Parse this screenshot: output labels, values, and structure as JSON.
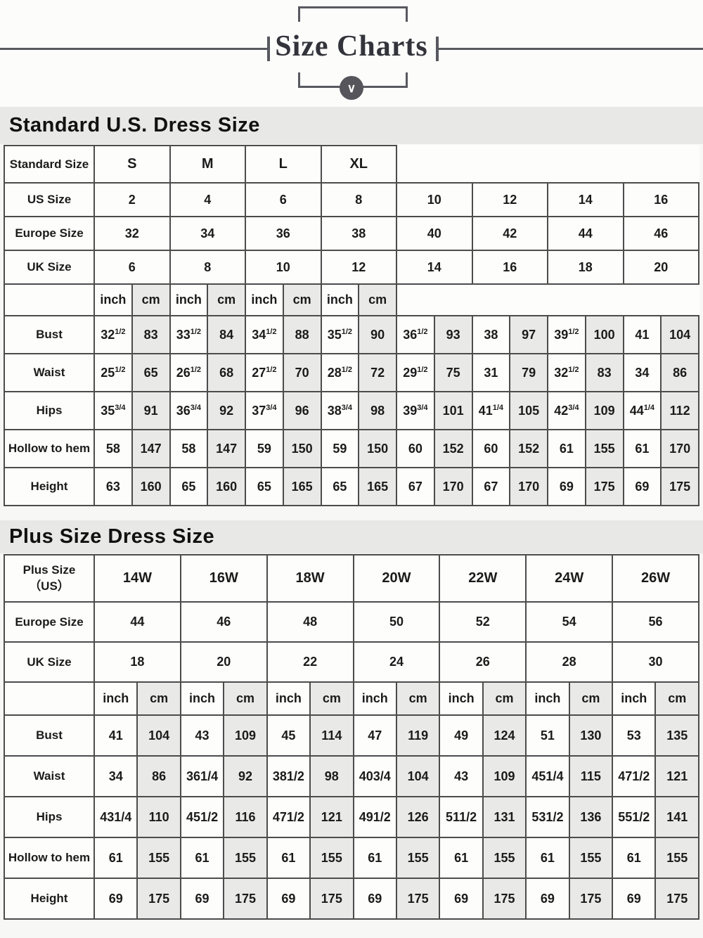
{
  "header": {
    "title": "Size Charts",
    "chevron_icon": "chevron-down",
    "chevron_glyph": "∨"
  },
  "colors": {
    "table_border": "#4c4c4c",
    "shaded_cell": "#e9e9e8",
    "title_bar_bg": "#e8e8e7",
    "banner_accent": "#585860"
  },
  "standard_table": {
    "section_title": "Standard U.S. Dress Size",
    "corner_label": "Standard Size",
    "size_groups": [
      "S",
      "M",
      "L",
      "XL"
    ],
    "size_rows": [
      {
        "label": "US Size",
        "values": [
          "2",
          "4",
          "6",
          "8",
          "10",
          "12",
          "14",
          "16"
        ]
      },
      {
        "label": "Europe Size",
        "values": [
          "32",
          "34",
          "36",
          "38",
          "40",
          "42",
          "44",
          "46"
        ]
      },
      {
        "label": "UK Size",
        "values": [
          "6",
          "8",
          "10",
          "12",
          "14",
          "16",
          "18",
          "20"
        ]
      }
    ],
    "units": [
      "inch",
      "cm"
    ],
    "measure_rows": [
      {
        "label": "Bust",
        "values": [
          "32^1/2",
          "83",
          "33^1/2",
          "84",
          "34^1/2",
          "88",
          "35^1/2",
          "90",
          "36^1/2",
          "93",
          "38",
          "97",
          "39^1/2",
          "100",
          "41",
          "104"
        ]
      },
      {
        "label": "Waist",
        "values": [
          "25^1/2",
          "65",
          "26^1/2",
          "68",
          "27^1/2",
          "70",
          "28^1/2",
          "72",
          "29^1/2",
          "75",
          "31",
          "79",
          "32^1/2",
          "83",
          "34",
          "86"
        ]
      },
      {
        "label": "Hips",
        "values": [
          "35^3/4",
          "91",
          "36^3/4",
          "92",
          "37^3/4",
          "96",
          "38^3/4",
          "98",
          "39^3/4",
          "101",
          "41^1/4",
          "105",
          "42^3/4",
          "109",
          "44^1/4",
          "112"
        ]
      },
      {
        "label": "Hollow to hem",
        "values": [
          "58",
          "147",
          "58",
          "147",
          "59",
          "150",
          "59",
          "150",
          "60",
          "152",
          "60",
          "152",
          "61",
          "155",
          "61",
          "170"
        ]
      },
      {
        "label": "Height",
        "values": [
          "63",
          "160",
          "65",
          "160",
          "65",
          "165",
          "65",
          "165",
          "67",
          "170",
          "67",
          "170",
          "69",
          "175",
          "69",
          "175"
        ]
      }
    ]
  },
  "plus_table": {
    "section_title": "Plus Size Dress Size",
    "corner_label_line1": "Plus Size",
    "corner_label_line2": "（US）",
    "size_groups": [
      "14W",
      "16W",
      "18W",
      "20W",
      "22W",
      "24W",
      "26W"
    ],
    "size_rows": [
      {
        "label": "Europe Size",
        "values": [
          "44",
          "46",
          "48",
          "50",
          "52",
          "54",
          "56"
        ]
      },
      {
        "label": "UK Size",
        "values": [
          "18",
          "20",
          "22",
          "24",
          "26",
          "28",
          "30"
        ]
      }
    ],
    "units": [
      "inch",
      "cm"
    ],
    "measure_rows": [
      {
        "label": "Bust",
        "values": [
          "41",
          "104",
          "43",
          "109",
          "45",
          "114",
          "47",
          "119",
          "49",
          "124",
          "51",
          "130",
          "53",
          "135"
        ]
      },
      {
        "label": "Waist",
        "values": [
          "34",
          "86",
          "361/4",
          "92",
          "381/2",
          "98",
          "403/4",
          "104",
          "43",
          "109",
          "451/4",
          "115",
          "471/2",
          "121"
        ]
      },
      {
        "label": "Hips",
        "values": [
          "431/4",
          "110",
          "451/2",
          "116",
          "471/2",
          "121",
          "491/2",
          "126",
          "511/2",
          "131",
          "531/2",
          "136",
          "551/2",
          "141"
        ]
      },
      {
        "label": "Hollow to hem",
        "values": [
          "61",
          "155",
          "61",
          "155",
          "61",
          "155",
          "61",
          "155",
          "61",
          "155",
          "61",
          "155",
          "61",
          "155"
        ]
      },
      {
        "label": "Height",
        "values": [
          "69",
          "175",
          "69",
          "175",
          "69",
          "175",
          "69",
          "175",
          "69",
          "175",
          "69",
          "175",
          "69",
          "175"
        ]
      }
    ]
  }
}
